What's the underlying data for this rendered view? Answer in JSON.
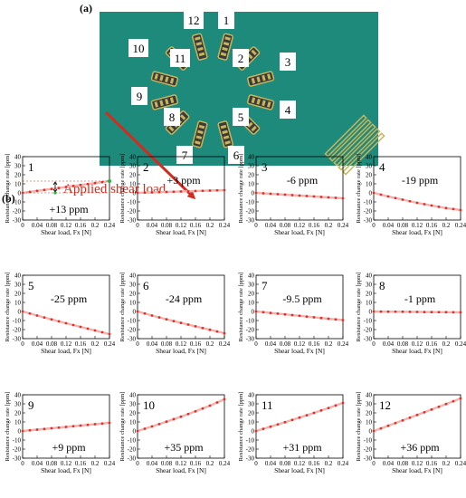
{
  "panel_labels": {
    "a": "(a)",
    "b": "(b)"
  },
  "board": {
    "numbers": [
      "1",
      "2",
      "3",
      "4",
      "5",
      "6",
      "7",
      "8",
      "9",
      "10",
      "11",
      "12"
    ],
    "colors": {
      "board": "#1e8a7c",
      "pad": "#c8b55a",
      "label_bg": "#ffffff"
    }
  },
  "applied_load_label": "Applied shear load",
  "arrow_color": "#d42b1e",
  "colors": {
    "point": "#e03020",
    "line": "#f2b0b0",
    "marker": "#c00000",
    "green": "#25b040"
  },
  "chart_data": [
    {
      "type": "line",
      "id": "1",
      "annotation": "+13 ppm",
      "x": [
        0,
        0.04,
        0.08,
        0.12,
        0.16,
        0.2,
        0.24
      ],
      "y": [
        0,
        2.2,
        4.3,
        6.5,
        8.7,
        10.8,
        13
      ],
      "ylabel": "Resistance change rate [ppm]",
      "xlabel": "Shear load, Fx [N]",
      "ylim": [
        -30,
        40
      ],
      "yticks": [
        "40",
        "30",
        "20",
        "10",
        "0",
        "-10",
        "-20",
        "-30"
      ],
      "xlim": [
        0,
        0.24
      ],
      "xticks": [
        "0",
        "0.04",
        "0.08",
        "0.12",
        "0.16",
        "0.2",
        "0.24"
      ]
    },
    {
      "type": "line",
      "id": "2",
      "annotation": "+3 ppm",
      "x": [
        0,
        0.04,
        0.08,
        0.12,
        0.16,
        0.2,
        0.24
      ],
      "y": [
        0,
        0.5,
        1,
        1.5,
        2,
        2.5,
        3
      ],
      "ylabel": "Resistance change rate [ppm]",
      "xlabel": "Shear load, Fx [N]",
      "ylim": [
        -30,
        40
      ],
      "yticks": [
        "40",
        "30",
        "20",
        "10",
        "0",
        "-10",
        "-20",
        "-30"
      ],
      "xlim": [
        0,
        0.24
      ],
      "xticks": [
        "0",
        "0.04",
        "0.08",
        "0.12",
        "0.16",
        "0.2",
        "0.24"
      ]
    },
    {
      "type": "line",
      "id": "3",
      "annotation": "-6 ppm",
      "x": [
        0,
        0.04,
        0.08,
        0.12,
        0.16,
        0.2,
        0.24
      ],
      "y": [
        0,
        -1,
        -2,
        -3,
        -4,
        -5,
        -6
      ],
      "ylabel": "Resistance change rate [ppm]",
      "xlabel": "Shear load, Fx [N]",
      "ylim": [
        -30,
        40
      ],
      "yticks": [
        "40",
        "30",
        "20",
        "10",
        "0",
        "-10",
        "-20",
        "-30"
      ],
      "xlim": [
        0,
        0.24
      ],
      "xticks": [
        "0",
        "0.04",
        "0.08",
        "0.12",
        "0.16",
        "0.2",
        "0.24"
      ]
    },
    {
      "type": "line",
      "id": "4",
      "annotation": "-19 ppm",
      "x": [
        0,
        0.04,
        0.08,
        0.12,
        0.16,
        0.2,
        0.24
      ],
      "y": [
        0,
        -4,
        -7.5,
        -11,
        -14,
        -16.8,
        -19
      ],
      "ylabel": "Resistance change rate [ppm]",
      "xlabel": "Shear load, Fx [N]",
      "ylim": [
        -30,
        40
      ],
      "yticks": [
        "40",
        "30",
        "20",
        "10",
        "0",
        "-10",
        "-20",
        "-30"
      ],
      "xlim": [
        0,
        0.24
      ],
      "xticks": [
        "0",
        "0.04",
        "0.08",
        "0.12",
        "0.16",
        "0.2",
        "0.24"
      ]
    },
    {
      "type": "line",
      "id": "5",
      "annotation": "-25 ppm",
      "x": [
        0,
        0.04,
        0.08,
        0.12,
        0.16,
        0.2,
        0.24
      ],
      "y": [
        0,
        -4.5,
        -8.8,
        -13,
        -17,
        -21,
        -25
      ],
      "ylabel": "Resistance change rate [ppm]",
      "xlabel": "Shear load, Fx [N]",
      "ylim": [
        -30,
        40
      ],
      "yticks": [
        "40",
        "30",
        "20",
        "10",
        "0",
        "-10",
        "-20",
        "-30"
      ],
      "xlim": [
        0,
        0.24
      ],
      "xticks": [
        "0",
        "0.04",
        "0.08",
        "0.12",
        "0.16",
        "0.2",
        "0.24"
      ]
    },
    {
      "type": "line",
      "id": "6",
      "annotation": "-24 ppm",
      "x": [
        0,
        0.04,
        0.08,
        0.12,
        0.16,
        0.2,
        0.24
      ],
      "y": [
        0,
        -4.5,
        -8.6,
        -12.6,
        -16.4,
        -20.2,
        -24
      ],
      "ylabel": "Resistance change rate [ppm]",
      "xlabel": "Shear load, Fx [N]",
      "ylim": [
        -30,
        40
      ],
      "yticks": [
        "40",
        "30",
        "20",
        "10",
        "0",
        "-10",
        "-20",
        "-30"
      ],
      "xlim": [
        0,
        0.24
      ],
      "xticks": [
        "0",
        "0.04",
        "0.08",
        "0.12",
        "0.16",
        "0.2",
        "0.24"
      ]
    },
    {
      "type": "line",
      "id": "7",
      "annotation": "-9.5 ppm",
      "x": [
        0,
        0.04,
        0.08,
        0.12,
        0.16,
        0.2,
        0.24
      ],
      "y": [
        0,
        -1.6,
        -3.2,
        -4.8,
        -6.4,
        -8,
        -9.5
      ],
      "ylabel": "Resistance change rate [ppm]",
      "xlabel": "Shear load, Fx [N]",
      "ylim": [
        -30,
        40
      ],
      "yticks": [
        "40",
        "30",
        "20",
        "10",
        "0",
        "-10",
        "-20",
        "-30"
      ],
      "xlim": [
        0,
        0.24
      ],
      "xticks": [
        "0",
        "0.04",
        "0.08",
        "0.12",
        "0.16",
        "0.2",
        "0.24"
      ]
    },
    {
      "type": "line",
      "id": "8",
      "annotation": "-1 ppm",
      "x": [
        0,
        0.04,
        0.08,
        0.12,
        0.16,
        0.2,
        0.24
      ],
      "y": [
        0,
        -0.2,
        -0.3,
        -0.5,
        -0.7,
        -0.8,
        -1
      ],
      "ylabel": "Resistance change rate [ppm]",
      "xlabel": "Shear load, Fx [N]",
      "ylim": [
        -30,
        40
      ],
      "yticks": [
        "40",
        "30",
        "20",
        "10",
        "0",
        "-10",
        "-20",
        "-30"
      ],
      "xlim": [
        0,
        0.24
      ],
      "xticks": [
        "0",
        "0.04",
        "0.08",
        "0.12",
        "0.16",
        "0.2",
        "0.24"
      ]
    },
    {
      "type": "line",
      "id": "9",
      "annotation": "+9 ppm",
      "x": [
        0,
        0.04,
        0.08,
        0.12,
        0.16,
        0.2,
        0.24
      ],
      "y": [
        0,
        1.5,
        3,
        4.5,
        6,
        7.5,
        9
      ],
      "ylabel": "Resistance change rate [ppm]",
      "xlabel": "Shear load, Fx [N]",
      "ylim": [
        -30,
        40
      ],
      "yticks": [
        "40",
        "30",
        "20",
        "10",
        "0",
        "-10",
        "-20",
        "-30"
      ],
      "xlim": [
        0,
        0.24
      ],
      "xticks": [
        "0",
        "0.04",
        "0.08",
        "0.12",
        "0.16",
        "0.2",
        "0.24"
      ]
    },
    {
      "type": "line",
      "id": "10",
      "annotation": "+35 ppm",
      "x": [
        0,
        0.04,
        0.08,
        0.12,
        0.16,
        0.2,
        0.24
      ],
      "y": [
        0,
        5,
        10.3,
        15.8,
        21.7,
        28,
        35
      ],
      "ylabel": "Resistance change rate [ppm]",
      "xlabel": "Shear load, Fx [N]",
      "ylim": [
        -30,
        40
      ],
      "yticks": [
        "40",
        "30",
        "20",
        "10",
        "0",
        "-10",
        "-20",
        "-30"
      ],
      "xlim": [
        0,
        0.24
      ],
      "xticks": [
        "0",
        "0.04",
        "0.08",
        "0.12",
        "0.16",
        "0.2",
        "0.24"
      ]
    },
    {
      "type": "line",
      "id": "11",
      "annotation": "+31 ppm",
      "x": [
        0,
        0.04,
        0.08,
        0.12,
        0.16,
        0.2,
        0.24
      ],
      "y": [
        0,
        4.8,
        9.7,
        14.8,
        20,
        25.4,
        31
      ],
      "ylabel": "Resistance change rate [ppm]",
      "xlabel": "Shear load, Fx [N]",
      "ylim": [
        -30,
        40
      ],
      "yticks": [
        "40",
        "30",
        "20",
        "10",
        "0",
        "-10",
        "-20",
        "-30"
      ],
      "xlim": [
        0,
        0.24
      ],
      "xticks": [
        "0",
        "0.04",
        "0.08",
        "0.12",
        "0.16",
        "0.2",
        "0.24"
      ]
    },
    {
      "type": "line",
      "id": "12",
      "annotation": "+36 ppm",
      "x": [
        0,
        0.04,
        0.08,
        0.12,
        0.16,
        0.2,
        0.24
      ],
      "y": [
        0,
        5.8,
        11.7,
        17.7,
        23.7,
        29.8,
        36
      ],
      "ylabel": "Resistance change rate [ppm]",
      "xlabel": "Shear load, Fx [N]",
      "ylim": [
        -30,
        40
      ],
      "yticks": [
        "40",
        "30",
        "20",
        "10",
        "0",
        "-10",
        "-20",
        "-30"
      ],
      "xlim": [
        0,
        0.24
      ],
      "xticks": [
        "0",
        "0.04",
        "0.08",
        "0.12",
        "0.16",
        "0.2",
        "0.24"
      ]
    }
  ]
}
